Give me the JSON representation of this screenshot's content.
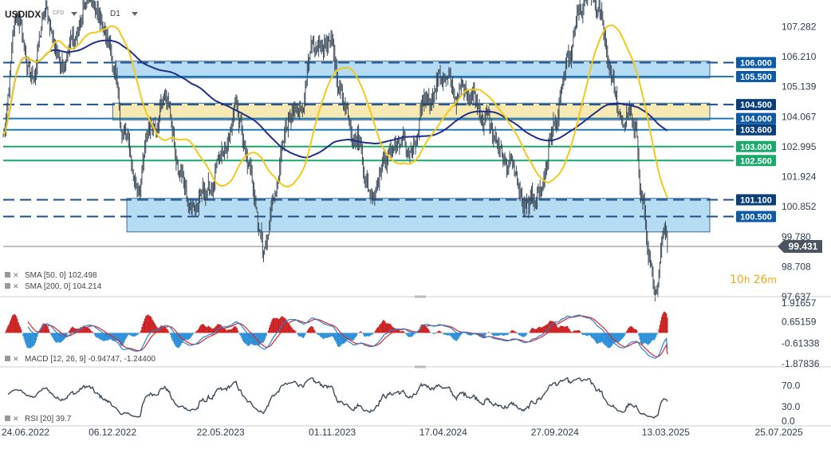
{
  "header": {
    "symbol": "USDIDX",
    "symbol_sub": "CFD",
    "timeframe": "D1"
  },
  "countdown": {
    "hours": "10",
    "hours_unit": "h",
    "minutes": "26",
    "minutes_unit": "m"
  },
  "colors": {
    "price": "#3a4a5a",
    "sma50": "#f2c81a",
    "sma200": "#1f2f8a",
    "zone_blue": "#a9d6f2",
    "zone_yellow": "#f6e6a6",
    "level_dashed": "#1b4f8a",
    "level_solid": "#1f78b4",
    "level_green": "#1aa86b",
    "macd_line": "#2a7fd0",
    "signal_line": "#d62828",
    "hist_pos": "#cc1f1f",
    "hist_neg": "#2a8fd8",
    "rsi_line": "#3a4a5a",
    "label_bg": "#0d5aa7",
    "label_bg_dark": "#0b3f7a",
    "green_label_bg": "#1aa86b",
    "current_label_bg": "#4a5561"
  },
  "chart_data": [
    {
      "type": "line",
      "name": "price",
      "y_ticks": [
        "107.282",
        "106.210",
        "105.139",
        "104.067",
        "102.995",
        "101.924",
        "100.852",
        "99.780",
        "98.708",
        "97.637"
      ],
      "ylim": [
        97.637,
        107.95
      ],
      "x_ticks": [
        "24.06.2022",
        "06.12.2022",
        "22.05.2023",
        "01.11.2023",
        "17.04.2024",
        "27.09.2024",
        "13.03.2025",
        "25.07.2025"
      ],
      "current_price": "99.431",
      "levels": [
        {
          "label": "106.000",
          "value": 106.0,
          "style": "dashed",
          "color": "level_dashed",
          "label_color": "label_bg"
        },
        {
          "label": "105.500",
          "value": 105.5,
          "style": "solid",
          "color": "level_solid",
          "label_color": "label_bg"
        },
        {
          "label": "104.500",
          "value": 104.5,
          "style": "dashed",
          "color": "level_dashed",
          "label_color": "label_bg_dark"
        },
        {
          "label": "104.000",
          "value": 104.0,
          "style": "solid",
          "color": "level_solid",
          "label_color": "label_bg"
        },
        {
          "label": "103.600",
          "value": 103.6,
          "style": "solid",
          "color": "level_solid",
          "label_color": "label_bg_dark"
        },
        {
          "label": "103.000",
          "value": 103.0,
          "style": "solid",
          "color": "level_green",
          "label_color": "green_label_bg"
        },
        {
          "label": "102.500",
          "value": 102.5,
          "style": "solid",
          "color": "level_green",
          "label_color": "green_label_bg"
        },
        {
          "label": "101.100",
          "value": 101.1,
          "style": "dashed",
          "color": "level_dashed",
          "label_color": "label_bg_dark"
        },
        {
          "label": "100.500",
          "value": 100.5,
          "style": "dashed",
          "color": "level_dashed",
          "label_color": "label_bg"
        }
      ],
      "zones": [
        {
          "name": "upper-resistance-zone",
          "from": 105.45,
          "to": 106.05,
          "color": "zone_blue",
          "start": 0.16
        },
        {
          "name": "middle-zone",
          "from": 103.95,
          "to": 104.55,
          "color": "zone_yellow",
          "start": 0.155
        },
        {
          "name": "lower-support-zone",
          "from": 99.95,
          "to": 101.15,
          "color": "zone_blue",
          "start": 0.175
        }
      ],
      "price_anchors": [
        [
          0,
          103.4
        ],
        [
          0.02,
          107.6
        ],
        [
          0.04,
          105.4
        ],
        [
          0.06,
          107.7
        ],
        [
          0.08,
          106.2
        ],
        [
          0.1,
          106.8
        ],
        [
          0.12,
          108.2
        ],
        [
          0.14,
          107.3
        ],
        [
          0.15,
          106.6
        ],
        [
          0.17,
          103.5
        ],
        [
          0.19,
          101.6
        ],
        [
          0.21,
          103.8
        ],
        [
          0.23,
          104.9
        ],
        [
          0.25,
          101.9
        ],
        [
          0.27,
          100.8
        ],
        [
          0.29,
          101.4
        ],
        [
          0.31,
          102.4
        ],
        [
          0.33,
          104.2
        ],
        [
          0.35,
          101.9
        ],
        [
          0.37,
          99.5
        ],
        [
          0.385,
          101.4
        ],
        [
          0.4,
          103.5
        ],
        [
          0.42,
          104.5
        ],
        [
          0.44,
          106.2
        ],
        [
          0.46,
          106.8
        ],
        [
          0.48,
          104.8
        ],
        [
          0.5,
          103.5
        ],
        [
          0.52,
          101.4
        ],
        [
          0.54,
          102.6
        ],
        [
          0.56,
          103.2
        ],
        [
          0.58,
          102.7
        ],
        [
          0.6,
          104.7
        ],
        [
          0.62,
          105.6
        ],
        [
          0.64,
          104.8
        ],
        [
          0.66,
          105.1
        ],
        [
          0.68,
          104.3
        ],
        [
          0.7,
          103.0
        ],
        [
          0.72,
          102.3
        ],
        [
          0.74,
          100.6
        ],
        [
          0.76,
          101.5
        ],
        [
          0.78,
          103.8
        ],
        [
          0.8,
          105.8
        ],
        [
          0.815,
          107.6
        ],
        [
          0.83,
          108.3
        ],
        [
          0.845,
          107.6
        ],
        [
          0.86,
          105.8
        ],
        [
          0.875,
          103.6
        ],
        [
          0.885,
          104.2
        ],
        [
          0.895,
          103.2
        ],
        [
          0.905,
          101.2
        ],
        [
          0.915,
          98.8
        ],
        [
          0.925,
          97.7
        ],
        [
          0.935,
          99.6
        ],
        [
          0.94,
          99.3
        ]
      ],
      "series": [
        {
          "name": "SMA [50, 0]",
          "value": "102.498",
          "color": "sma50"
        },
        {
          "name": "SMA [200, 0]",
          "value": "104.214",
          "color": "sma200"
        }
      ]
    },
    {
      "type": "area",
      "name": "macd",
      "label": "MACD [12, 26, 9]",
      "values_text": [
        "-0.94747",
        "-1.24400"
      ],
      "y_ticks": [
        "1.91657",
        "0.65159",
        "-0.61338",
        "-1.87836"
      ],
      "ylim": [
        -1.87836,
        1.91657
      ]
    },
    {
      "type": "line",
      "name": "rsi",
      "label": "RSI [20]",
      "value_text": "39.7",
      "y_ticks": [
        "70.0",
        "30.0",
        "0.0"
      ],
      "ylim": [
        0,
        100
      ]
    }
  ]
}
